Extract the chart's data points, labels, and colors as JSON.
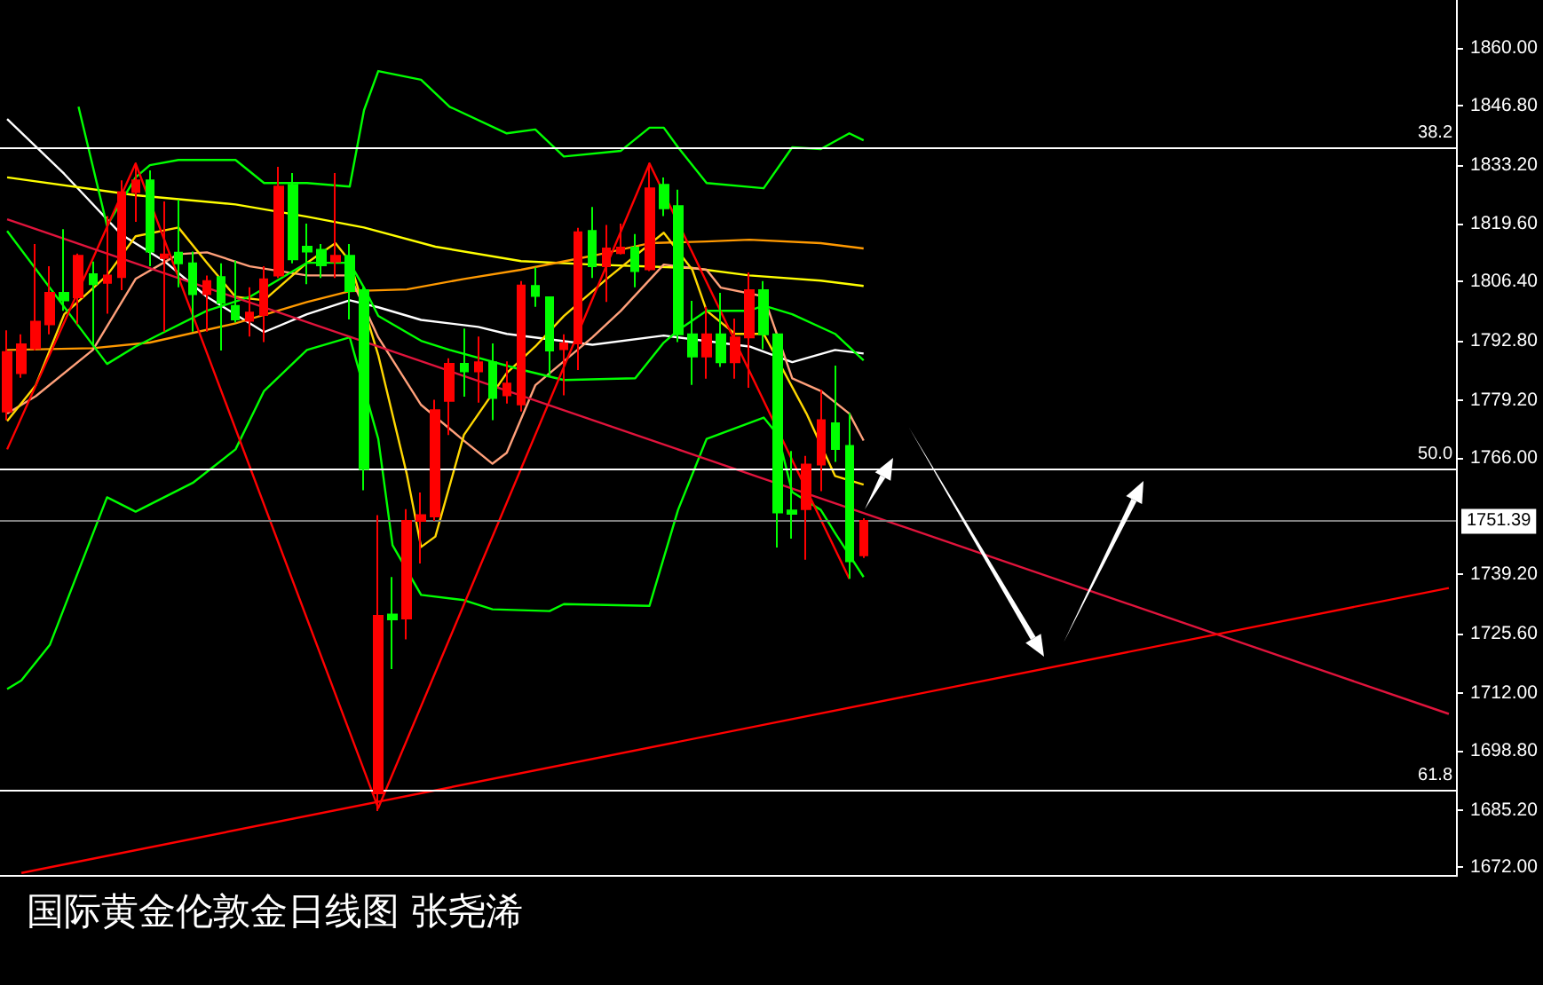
{
  "chart_data": {
    "type": "candlestick",
    "title": "国际黄金伦敦金日线图 张尧浠",
    "categories": [
      null,
      null,
      null,
      null,
      null,
      null,
      null,
      null,
      null,
      null,
      null,
      null,
      null,
      null,
      null,
      null,
      null,
      null,
      null,
      null,
      null,
      null,
      null,
      null,
      null,
      null,
      null,
      null,
      null,
      null,
      null,
      null,
      null,
      null,
      null,
      null,
      null,
      null,
      null,
      null,
      null,
      null,
      null,
      null,
      null,
      null,
      null,
      null,
      null,
      null,
      null,
      null,
      null,
      null,
      null,
      null,
      null,
      null,
      null,
      null,
      null,
      null,
      null,
      null,
      null,
      null,
      null,
      null,
      null,
      null,
      null,
      null,
      null,
      null,
      null,
      null,
      null,
      null,
      null,
      null,
      null,
      null,
      null,
      null,
      null,
      null,
      null,
      null,
      null,
      null,
      null,
      null,
      null,
      null,
      null,
      null,
      null,
      null,
      null,
      null,
      null,
      null
    ],
    "series": [
      {
        "type": "line",
        "color": "#ffffff",
        "values": [
          1843.7,
          null,
          null,
          null,
          1831.1,
          null,
          null,
          null,
          1817.2,
          null,
          null,
          1811.1,
          null,
          null,
          1802.9,
          null,
          null,
          null,
          1794.8,
          null,
          null,
          1798.9,
          null,
          null,
          1802.1,
          null,
          1800.5,
          null,
          null,
          1797.6,
          null,
          null,
          null,
          1796.0,
          null,
          1794.4,
          null,
          null,
          null,
          null,
          null,
          1791.9,
          null,
          null,
          null,
          null,
          1794.0,
          null,
          null,
          null,
          null,
          null,
          1791.5,
          null,
          null,
          1787.9,
          null,
          null,
          1790.7,
          null,
          1789.9,
          null,
          null,
          null,
          null,
          null,
          null,
          null,
          null,
          null,
          null,
          null,
          null,
          null,
          null,
          null,
          null,
          null,
          null,
          null,
          null,
          null,
          null,
          null,
          null,
          null,
          null,
          null,
          null,
          null,
          null,
          null,
          null,
          null,
          null,
          null,
          null,
          null,
          null,
          null,
          null,
          null
        ]
      },
      {
        "type": "line",
        "color": "#ffff00",
        "values": [
          1830.3,
          null,
          null,
          null,
          null,
          null,
          null,
          null,
          null,
          1826.2,
          null,
          null,
          null,
          null,
          null,
          null,
          1824.1,
          null,
          null,
          null,
          null,
          1821.3,
          null,
          null,
          null,
          1818.8,
          null,
          null,
          null,
          null,
          1814.4,
          null,
          null,
          null,
          null,
          null,
          1811.1,
          null,
          null,
          null,
          null,
          1810.3,
          null,
          null,
          null,
          null,
          null,
          null,
          1809.5,
          null,
          null,
          null,
          1807.8,
          null,
          null,
          null,
          null,
          1806.6,
          null,
          null,
          1805.4,
          null,
          null,
          null,
          null,
          null,
          null,
          null,
          null,
          null,
          null,
          null,
          null,
          null,
          null,
          null,
          null,
          null,
          null,
          null,
          null,
          null,
          null,
          null,
          null,
          null,
          null,
          null,
          null,
          null,
          null,
          null,
          null,
          null,
          null,
          null,
          null,
          null,
          null,
          null,
          null,
          null
        ]
      },
      {
        "type": "line",
        "color": "#ff9900",
        "values": [
          1790.7,
          null,
          null,
          null,
          null,
          null,
          1791.1,
          null,
          null,
          null,
          1792.4,
          null,
          null,
          null,
          null,
          null,
          1796.8,
          null,
          null,
          null,
          null,
          1801.7,
          null,
          null,
          1804.2,
          null,
          null,
          null,
          1804.6,
          null,
          null,
          null,
          1807.0,
          null,
          null,
          null,
          1809.1,
          null,
          null,
          null,
          null,
          1812.3,
          null,
          null,
          null,
          1815.2,
          null,
          null,
          null,
          1815.6,
          null,
          null,
          1816.0,
          null,
          null,
          null,
          null,
          1815.2,
          null,
          null,
          1814.0,
          null,
          null,
          null,
          null,
          null,
          null,
          null,
          null,
          null,
          null,
          null,
          null,
          null,
          null,
          null,
          null,
          null,
          null,
          null,
          null,
          null,
          null,
          null,
          null,
          null,
          null,
          null,
          null,
          null,
          null,
          null,
          null,
          null,
          null,
          null,
          null,
          null,
          null,
          null,
          null,
          null
        ]
      },
      {
        "type": "line",
        "color": "#ffa07a",
        "values": [
          1776.1,
          null,
          1780.1,
          null,
          null,
          null,
          1790.7,
          null,
          null,
          1807.0,
          null,
          null,
          1812.7,
          null,
          1813.1,
          null,
          null,
          1809.9,
          null,
          null,
          null,
          1807.8,
          null,
          null,
          1807.8,
          null,
          1793.6,
          null,
          null,
          1778.1,
          null,
          null,
          1769.9,
          null,
          1764.6,
          1767.1,
          null,
          1782.6,
          null,
          null,
          null,
          1793.6,
          null,
          1799.7,
          null,
          null,
          1810.3,
          null,
          null,
          1809.1,
          1805.0,
          null,
          null,
          1803.0,
          null,
          1784.2,
          null,
          1781.3,
          null,
          1776.1,
          1769.9,
          null,
          null,
          null,
          null,
          null,
          null,
          null,
          null,
          null,
          null,
          null,
          null,
          null,
          null,
          null,
          null,
          null,
          null,
          null,
          null,
          null,
          null,
          null,
          null,
          null,
          null,
          null,
          null,
          null,
          null,
          null,
          null,
          null,
          null,
          null,
          null,
          null,
          null,
          null,
          null,
          null
        ]
      },
      {
        "type": "line",
        "color": "#ffd700",
        "values": [
          1774.4,
          null,
          1782.6,
          null,
          1798.9,
          null,
          null,
          1807.8,
          null,
          1816.8,
          null,
          null,
          1818.8,
          null,
          1810.7,
          null,
          1802.9,
          null,
          1802.1,
          null,
          null,
          1810.7,
          null,
          1815.2,
          1811.1,
          null,
          1789.5,
          null,
          1762.2,
          1745.5,
          1747.9,
          null,
          1771.2,
          null,
          null,
          1785.4,
          null,
          1791.5,
          null,
          1798.5,
          null,
          null,
          1807.0,
          null,
          null,
          null,
          1817.6,
          null,
          1809.1,
          1799.7,
          null,
          1794.4,
          null,
          1794.4,
          null,
          null,
          1776.1,
          null,
          1761.8,
          null,
          1759.8,
          null,
          null,
          null,
          null,
          null,
          null,
          null,
          null,
          null,
          null,
          null,
          null,
          null,
          null,
          null,
          null,
          null,
          null,
          null,
          null,
          null,
          null,
          null,
          null,
          null,
          null,
          null,
          null,
          null,
          null,
          null,
          null,
          null,
          null,
          null,
          null,
          null,
          null,
          null,
          null,
          null
        ]
      },
      {
        "type": "line",
        "color": "#00ff00",
        "values": [
          null,
          null,
          null,
          null,
          null,
          1846.5,
          null,
          1819.2,
          null,
          1830.3,
          1833.1,
          null,
          1834.3,
          null,
          null,
          null,
          1834.3,
          null,
          1829.0,
          null,
          null,
          1829.0,
          null,
          null,
          1828.2,
          1845.7,
          1854.7,
          null,
          null,
          1852.7,
          null,
          1846.5,
          null,
          null,
          null,
          1840.4,
          null,
          1841.3,
          null,
          1835.1,
          null,
          null,
          null,
          1836.4,
          null,
          1841.7,
          1841.7,
          1837.2,
          null,
          1829.0,
          null,
          null,
          null,
          1827.8,
          null,
          1837.2,
          null,
          1836.8,
          null,
          1840.4,
          1838.8,
          null,
          null,
          null,
          null,
          null,
          null,
          null,
          null,
          null,
          null,
          null,
          null,
          null,
          null,
          null,
          null,
          null,
          null,
          null,
          null,
          null,
          null,
          null,
          null,
          null,
          null,
          null,
          null,
          null,
          null,
          null,
          null,
          null,
          null,
          null,
          null,
          null,
          null,
          null,
          null,
          null
        ]
      },
      {
        "type": "line",
        "color": "#00ff00",
        "values": [
          1818.0,
          null,
          null,
          null,
          null,
          null,
          null,
          1787.5,
          null,
          1791.5,
          null,
          1794.8,
          null,
          null,
          1799.7,
          null,
          null,
          1802.9,
          null,
          null,
          null,
          1810.7,
          null,
          null,
          1810.7,
          1805.0,
          1798.5,
          null,
          null,
          1792.8,
          null,
          1790.7,
          null,
          null,
          null,
          null,
          1786.2,
          null,
          null,
          1783.8,
          null,
          null,
          null,
          null,
          1784.2,
          null,
          1792.4,
          1795.2,
          null,
          1799.7,
          null,
          null,
          1799.7,
          1800.9,
          null,
          1798.9,
          null,
          null,
          1794.4,
          null,
          1788.3,
          null,
          null,
          null,
          null,
          null,
          null,
          null,
          null,
          null,
          null,
          null,
          null,
          null,
          null,
          null,
          null,
          null,
          null,
          null,
          null,
          null,
          null,
          null,
          null,
          null,
          null,
          null,
          null,
          null,
          null,
          null,
          null,
          null,
          null,
          null,
          null,
          null,
          null,
          null,
          null,
          null
        ]
      },
      {
        "type": "line",
        "color": "#00ff00",
        "values": [
          1712.9,
          1714.9,
          null,
          1723.1,
          null,
          null,
          null,
          1756.9,
          null,
          1753.6,
          null,
          null,
          null,
          1760.2,
          null,
          null,
          1767.9,
          null,
          1781.3,
          null,
          null,
          1790.7,
          null,
          null,
          1793.6,
          null,
          1770.3,
          1745.9,
          null,
          1734.5,
          null,
          null,
          1733.3,
          null,
          1731.2,
          null,
          null,
          null,
          1730.8,
          1732.4,
          null,
          null,
          null,
          null,
          null,
          1732.0,
          null,
          1754.0,
          null,
          1770.3,
          null,
          null,
          null,
          1775.2,
          1771.2,
          1758.1,
          null,
          1754.0,
          1748.7,
          null,
          1738.6,
          null,
          null,
          null,
          null,
          null,
          null,
          null,
          null,
          null,
          null,
          null,
          null,
          null,
          null,
          null,
          null,
          null,
          null,
          null,
          null,
          null,
          null,
          null,
          null,
          null,
          null,
          null,
          null,
          null,
          null,
          null,
          null,
          null,
          null,
          null,
          null,
          null,
          null,
          null,
          null,
          null
        ]
      },
      {
        "type": "line",
        "color": "#ff0000",
        "values": [
          1767.9,
          null,
          null,
          null,
          null,
          null,
          null,
          null,
          null,
          1833.5,
          null,
          null,
          null,
          null,
          null,
          null,
          null,
          null,
          null,
          null,
          null,
          null,
          null,
          null,
          null,
          null,
          1685.6,
          null,
          null,
          null,
          null,
          null,
          null,
          null,
          null,
          null,
          null,
          null,
          null,
          null,
          null,
          null,
          null,
          null,
          null,
          1833.5,
          null,
          null,
          null,
          null,
          null,
          null,
          null,
          null,
          null,
          null,
          null,
          null,
          null,
          1738.2,
          null,
          null,
          null,
          null,
          null,
          null,
          null,
          null,
          null,
          null,
          null,
          null,
          null,
          null,
          null,
          null,
          null,
          null,
          null,
          null,
          null,
          null,
          null,
          null,
          null,
          null,
          null,
          null,
          null,
          null,
          null,
          null,
          null,
          null,
          null,
          null,
          null,
          null,
          null,
          null,
          null,
          null
        ]
      },
      {
        "type": "line",
        "color": "#e0143c",
        "values": [
          1820.7,
          null,
          null,
          null,
          null,
          null,
          null,
          null,
          null,
          null,
          null,
          null,
          null,
          null,
          null,
          null,
          null,
          null,
          null,
          null,
          null,
          null,
          null,
          null,
          null,
          null,
          null,
          null,
          null,
          null,
          null,
          null,
          null,
          null,
          null,
          null,
          null,
          null,
          null,
          null,
          null,
          null,
          null,
          null,
          null,
          null,
          null,
          null,
          null,
          null,
          null,
          null,
          null,
          null,
          null,
          null,
          null,
          null,
          null,
          null,
          null,
          null,
          null,
          null,
          null,
          null,
          null,
          null,
          null,
          null,
          null,
          null,
          null,
          null,
          null,
          null,
          null,
          null,
          null,
          null,
          null,
          null,
          null,
          null,
          null,
          null,
          null,
          null,
          null,
          null,
          null,
          null,
          null,
          null,
          null,
          null,
          null,
          null,
          null,
          null,
          null,
          1707.2
        ]
      },
      {
        "type": "line",
        "color": "#ff0000",
        "values": [
          null,
          1670.7,
          null,
          null,
          null,
          null,
          null,
          null,
          null,
          null,
          null,
          null,
          null,
          null,
          null,
          null,
          null,
          null,
          null,
          null,
          null,
          null,
          null,
          null,
          null,
          null,
          null,
          null,
          null,
          null,
          null,
          null,
          null,
          null,
          null,
          null,
          null,
          null,
          null,
          null,
          null,
          null,
          null,
          null,
          null,
          null,
          null,
          null,
          null,
          null,
          null,
          null,
          null,
          null,
          null,
          null,
          null,
          null,
          null,
          null,
          null,
          null,
          null,
          null,
          null,
          null,
          null,
          null,
          null,
          null,
          null,
          null,
          null,
          null,
          null,
          null,
          null,
          null,
          null,
          null,
          null,
          null,
          null,
          null,
          null,
          null,
          null,
          null,
          null,
          null,
          null,
          null,
          null,
          null,
          null,
          null,
          null,
          null,
          null,
          null,
          null,
          1736.1
        ]
      },
      {
        "colors": [
          "#ff0000",
          "#ff0000",
          "#ff0000",
          "#ff0000",
          "#00ff00",
          "#ff0000",
          "#00ff00",
          "#ff0000",
          "#ff0000",
          "#ff0000",
          "#00ff00",
          "#ff0000",
          "#00ff00",
          "#00ff00",
          "#ff0000",
          "#00ff00",
          "#00ff00",
          "#ff0000",
          "#ff0000",
          "#ff0000",
          "#00ff00",
          "#00ff00",
          "#00ff00",
          "#ff0000",
          "#00ff00",
          "#00ff00",
          "#ff0000",
          "#00ff00",
          "#ff0000",
          "#ff0000",
          "#ff0000",
          "#ff0000",
          "#00ff00",
          "#ff0000",
          "#00ff00",
          "#ff0000",
          "#ff0000",
          "#00ff00",
          "#00ff00",
          "#ff0000",
          "#ff0000",
          "#00ff00",
          "#ff0000",
          "#ff0000",
          "#00ff00",
          "#ff0000",
          "#00ff00",
          "#00ff00",
          "#00ff00",
          "#ff0000",
          "#00ff00",
          "#ff0000",
          "#ff0000",
          "#00ff00",
          "#00ff00",
          "#00ff00",
          "#ff0000",
          "#ff0000",
          "#00ff00",
          "#00ff00",
          "#ff0000",
          null,
          null,
          null,
          null,
          null,
          null,
          null,
          null,
          null,
          null,
          null,
          null,
          null,
          null,
          null,
          null,
          null,
          null,
          null,
          null,
          null,
          null,
          null,
          null,
          null,
          null,
          null,
          null,
          null,
          null,
          null,
          null,
          null,
          null,
          null,
          null,
          null,
          null,
          null,
          null,
          null
        ],
        "ohlc": [
          [
            1776.6,
            1795.2,
            1774.6,
            1790.2
          ],
          [
            1785.4,
            1794.3,
            1784.3,
            1792.0
          ],
          [
            1791.1,
            1815.0,
            1790.6,
            1797.2
          ],
          [
            1796.6,
            1809.9,
            1794.3,
            1803.8
          ],
          [
            1803.8,
            1818.4,
            1799.7,
            1802.1
          ],
          [
            1802.8,
            1812.8,
            1796.6,
            1812.3
          ],
          [
            1808.1,
            1811.0,
            1791.5,
            1805.8
          ],
          [
            1806.1,
            1821.4,
            1799.0,
            1807.8
          ],
          [
            1807.4,
            1829.6,
            1804.4,
            1826.9
          ],
          [
            1826.9,
            1833.6,
            1820.1,
            1829.6
          ],
          [
            1829.6,
            1831.9,
            1809.9,
            1813.3
          ],
          [
            1811.8,
            1824.8,
            1794.9,
            1812.6
          ],
          [
            1813.0,
            1825.2,
            1805.1,
            1810.6
          ],
          [
            1810.6,
            1813.3,
            1794.9,
            1803.5
          ],
          [
            1803.5,
            1807.8,
            1794.9,
            1806.5
          ],
          [
            1807.4,
            1810.6,
            1790.6,
            1801.5
          ],
          [
            1800.8,
            1811.2,
            1797.0,
            1797.7
          ],
          [
            1797.4,
            1805.1,
            1793.8,
            1799.3
          ],
          [
            1798.7,
            1809.9,
            1792.5,
            1806.9
          ],
          [
            1807.8,
            1832.7,
            1807.2,
            1828.2
          ],
          [
            1828.6,
            1831.3,
            1810.6,
            1811.5
          ],
          [
            1814.4,
            1819.7,
            1805.8,
            1813.3
          ],
          [
            1813.7,
            1815.0,
            1807.2,
            1810.1
          ],
          [
            1811.0,
            1831.3,
            1807.2,
            1812.3
          ],
          [
            1812.3,
            1815.0,
            1797.7,
            1804.2
          ],
          [
            1804.4,
            1805.1,
            1758.5,
            1763.4
          ],
          [
            1689.0,
            1752.8,
            1684.9,
            1729.7
          ],
          [
            1730.0,
            1738.6,
            1717.5,
            1728.9
          ],
          [
            1729.1,
            1754.2,
            1724.3,
            1751.5
          ],
          [
            1751.5,
            1758.0,
            1741.7,
            1752.8
          ],
          [
            1752.5,
            1779.3,
            1751.5,
            1776.9
          ],
          [
            1779.0,
            1788.8,
            1771.2,
            1787.5
          ],
          [
            1787.5,
            1795.6,
            1780.0,
            1785.8
          ],
          [
            1785.8,
            1793.8,
            1778.6,
            1787.9
          ],
          [
            1787.9,
            1792.2,
            1774.6,
            1779.7
          ],
          [
            1780.3,
            1788.1,
            1778.4,
            1783.0
          ],
          [
            1778.2,
            1806.5,
            1776.6,
            1805.5
          ],
          [
            1805.4,
            1809.6,
            1800.6,
            1803.1
          ],
          [
            1802.8,
            1803.0,
            1784.7,
            1790.6
          ],
          [
            1790.9,
            1794.3,
            1780.3,
            1792.2
          ],
          [
            1792.2,
            1818.7,
            1786.1,
            1817.7
          ],
          [
            1818.0,
            1823.5,
            1807.2,
            1809.9
          ],
          [
            1809.9,
            1819.4,
            1801.7,
            1814.0
          ],
          [
            1812.9,
            1819.7,
            1812.6,
            1814.2
          ],
          [
            1814.2,
            1817.3,
            1805.1,
            1808.8
          ],
          [
            1809.2,
            1833.6,
            1808.8,
            1827.8
          ],
          [
            1828.6,
            1830.3,
            1821.4,
            1823.2
          ],
          [
            1823.7,
            1827.5,
            1792.5,
            1794.3
          ],
          [
            1794.3,
            1802.0,
            1782.7,
            1789.2
          ],
          [
            1789.2,
            1800.6,
            1784.1,
            1794.3
          ],
          [
            1794.3,
            1803.8,
            1786.8,
            1787.9
          ],
          [
            1787.9,
            1797.9,
            1784.1,
            1793.6
          ],
          [
            1793.6,
            1808.5,
            1782.0,
            1804.4
          ],
          [
            1804.4,
            1806.5,
            1790.9,
            1794.3
          ],
          [
            1794.3,
            1794.5,
            1745.4,
            1753.4
          ],
          [
            1753.9,
            1767.5,
            1747.4,
            1753.1
          ],
          [
            1754.2,
            1766.4,
            1742.6,
            1764.4
          ],
          [
            1764.4,
            1781.6,
            1758.3,
            1774.6
          ],
          [
            1773.9,
            1787.1,
            1765.0,
            1768.0
          ],
          [
            1768.7,
            1776.2,
            1738.2,
            1742.2
          ],
          [
            1743.6,
            1752.1,
            1743.0,
            1751.5
          ],
          null,
          null,
          null,
          null,
          null,
          null,
          null,
          null,
          null,
          null,
          null,
          null,
          null,
          null,
          null,
          null,
          null,
          null,
          null,
          null,
          null,
          null,
          null,
          null,
          null,
          null,
          null,
          null,
          null,
          null,
          null,
          null,
          null,
          null,
          null,
          null,
          null,
          null,
          null,
          null,
          null
        ]
      }
    ],
    "ylim": [
      1670,
      1871
    ],
    "yticks": [
      {
        "value": 1672,
        "label": "1672.00"
      },
      {
        "value": 1685.2,
        "label": "1685.20"
      },
      {
        "value": 1698.8,
        "label": "1698.80"
      },
      {
        "value": 1712,
        "label": "1712.00"
      },
      {
        "value": 1725.6,
        "label": "1725.60"
      },
      {
        "value": 1739.2,
        "label": "1739.20"
      },
      {
        "value": 1766,
        "label": "1766.00"
      },
      {
        "value": 1779.2,
        "label": "1779.20"
      },
      {
        "value": 1792.8,
        "label": "1792.80"
      },
      {
        "value": 1806.4,
        "label": "1806.40"
      },
      {
        "value": 1819.6,
        "label": "1819.60"
      },
      {
        "value": 1833.2,
        "label": "1833.20"
      },
      {
        "value": 1846.8,
        "label": "1846.80"
      },
      {
        "value": 1860,
        "label": "1860.00"
      }
    ],
    "ref_lines": [
      {
        "axis": "y",
        "value": 1837.2,
        "color": "#ffffff"
      },
      {
        "axis": "y",
        "value": 1763.4,
        "color": "#ffffff"
      },
      {
        "axis": "y",
        "value": 1689.7,
        "color": "#ffffff"
      },
      {
        "axis": "y",
        "value": 1751.39,
        "label": "1751.39",
        "color": "#808080"
      }
    ],
    "annotations": [
      {
        "text": "38.2",
        "y": 1837.2
      },
      {
        "text": "50.0",
        "y": 1763.4
      },
      {
        "text": "61.8",
        "y": 1689.7
      }
    ],
    "tick_labels": "y",
    "marker": "none",
    "line_style": "solid"
  }
}
